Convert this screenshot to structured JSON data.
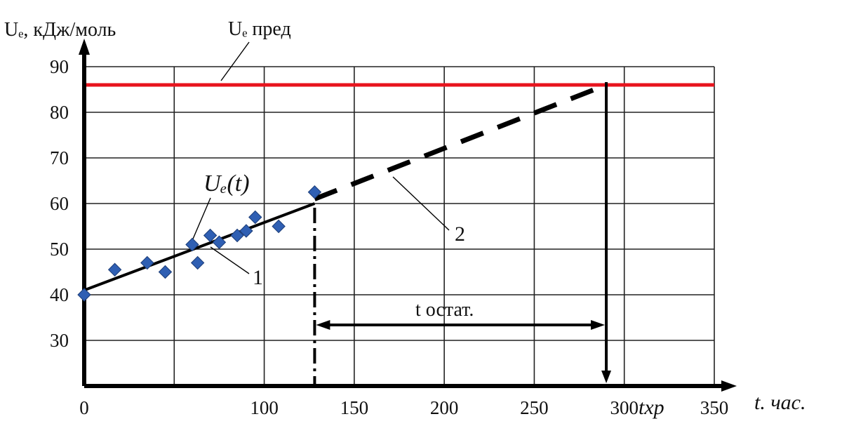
{
  "chart_data": {
    "type": "scatter",
    "title": "",
    "ylabel": "Uₑ, кДж/моль",
    "xlabel": "t. час.",
    "xlim": [
      0,
      350
    ],
    "ylim": [
      20,
      90
    ],
    "x_ticks": [
      0,
      100,
      150,
      200,
      250,
      300,
      350
    ],
    "x_tick_labels": [
      "0",
      "100",
      "150",
      "200",
      "250",
      "300",
      "350"
    ],
    "y_ticks": [
      30,
      40,
      50,
      60,
      70,
      80,
      90
    ],
    "y_tick_labels": [
      "30",
      "40",
      "50",
      "60",
      "70",
      "80",
      "90"
    ],
    "grid": true,
    "points": [
      {
        "x": 0,
        "y": 40
      },
      {
        "x": 17,
        "y": 45.5
      },
      {
        "x": 35,
        "y": 47
      },
      {
        "x": 45,
        "y": 45
      },
      {
        "x": 60,
        "y": 51
      },
      {
        "x": 63,
        "y": 47
      },
      {
        "x": 70,
        "y": 53
      },
      {
        "x": 75,
        "y": 51.5
      },
      {
        "x": 85,
        "y": 53
      },
      {
        "x": 90,
        "y": 54
      },
      {
        "x": 95,
        "y": 57
      },
      {
        "x": 108,
        "y": 55
      },
      {
        "x": 128,
        "y": 62.5
      }
    ],
    "trend_solid": {
      "x": [
        0,
        128
      ],
      "y": [
        41,
        60
      ]
    },
    "trend_dashed": {
      "x": [
        128,
        290
      ],
      "y": [
        61,
        86
      ]
    },
    "limit_value": 86,
    "limit_color": "#e8141e",
    "point_color": "#2f5fb3",
    "t_current": 128,
    "t_xp": 290,
    "labels": {
      "limit": "Uₑ пред",
      "fit": "Uₑ(t)",
      "line1": "1",
      "line2": "2",
      "residual": "t остат.",
      "t_xp": "tхр"
    }
  }
}
